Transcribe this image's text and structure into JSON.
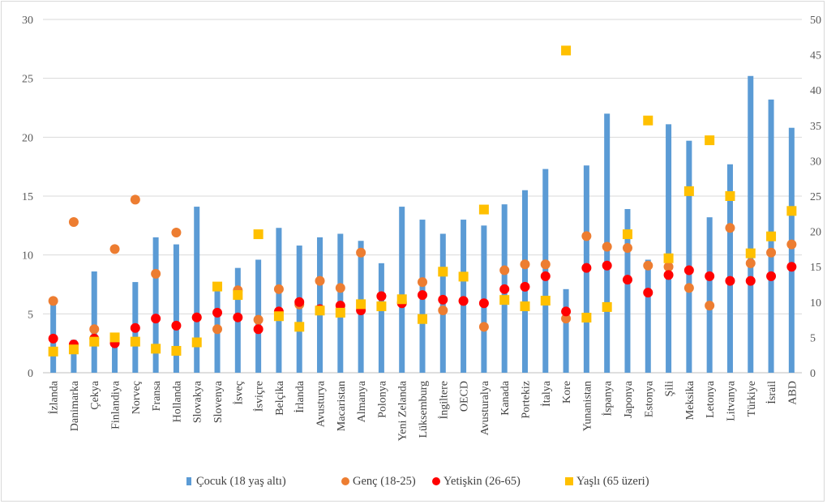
{
  "chart_data": {
    "type": "bar",
    "categories": [
      "İzlanda",
      "Danimarka",
      "Çekya",
      "Finlandiya",
      "Norveç",
      "Fransa",
      "Hollanda",
      "Slovakya",
      "Slovenya",
      "İsveç",
      "İsviçre",
      "Belçika",
      "İrlanda",
      "Avusturya",
      "Macaristan",
      "Almanya",
      "Polonya",
      "Yeni Zelanda",
      "Lüksemburg",
      "İngiltere",
      "OECD",
      "Avusturalya",
      "Kanada",
      "Portekiz",
      "İtalya",
      "Kore",
      "Yunanistan",
      "İspanya",
      "Japonya",
      "Estonya",
      "Şili",
      "Meksika",
      "Letonya",
      "Litvanya",
      "Türkiye",
      "İsrail",
      "ABD"
    ],
    "ylim": [
      0,
      30
    ],
    "y2lim": [
      0,
      50
    ],
    "y_ticks": [
      "0",
      "5",
      "10",
      "15",
      "20",
      "25",
      "30"
    ],
    "y2_ticks": [
      "0",
      "5",
      "10",
      "15",
      "20",
      "25",
      "30",
      "35",
      "40",
      "45",
      "50"
    ],
    "grid": "horizontal",
    "legend_position": "bottom",
    "series": [
      {
        "name": "Çocuk (18 yaş altı)",
        "type": "bar",
        "axis": "left",
        "color": "#5b9bd5",
        "values": [
          6.0,
          2.8,
          8.6,
          2.7,
          7.7,
          11.5,
          10.9,
          14.1,
          7.1,
          8.9,
          9.6,
          12.3,
          10.8,
          11.5,
          11.8,
          11.2,
          9.3,
          14.1,
          13.0,
          11.8,
          13.0,
          12.5,
          14.3,
          15.5,
          17.3,
          7.1,
          17.6,
          22.0,
          13.9,
          9.6,
          21.1,
          19.7,
          13.2,
          17.7,
          25.2,
          23.2,
          20.8
        ]
      },
      {
        "name": "Genç (18-25)",
        "type": "scatter",
        "axis": "left",
        "color": "#ed7d31",
        "marker": "circle",
        "values": [
          6.1,
          12.8,
          3.7,
          10.5,
          14.7,
          8.4,
          11.9,
          4.7,
          3.7,
          7.0,
          4.5,
          7.1,
          5.8,
          7.8,
          7.2,
          10.2,
          6.5,
          6.0,
          7.7,
          5.3,
          6.1,
          3.9,
          8.7,
          9.2,
          9.2,
          4.6,
          11.6,
          10.7,
          10.6,
          9.1,
          9.0,
          7.2,
          5.7,
          12.3,
          9.3,
          10.2,
          10.9
        ]
      },
      {
        "name": "Yetişkin (26-65)",
        "type": "scatter",
        "axis": "left",
        "color": "#ff0000",
        "marker": "circle",
        "values": [
          2.9,
          2.4,
          2.9,
          2.5,
          3.8,
          4.6,
          4.0,
          4.7,
          5.1,
          4.7,
          3.7,
          5.2,
          6.0,
          5.4,
          5.7,
          5.3,
          6.5,
          5.9,
          6.6,
          6.2,
          6.1,
          5.9,
          7.1,
          7.3,
          8.2,
          5.2,
          8.9,
          9.1,
          7.9,
          6.8,
          8.3,
          8.7,
          8.2,
          7.8,
          7.8,
          8.2,
          9.0
        ]
      },
      {
        "name": "Yaşlı (65 üzeri)",
        "type": "scatter",
        "axis": "right",
        "color": "#ffc000",
        "marker": "square",
        "values": [
          3.0,
          3.3,
          4.4,
          5.0,
          4.4,
          3.4,
          3.1,
          4.3,
          12.2,
          11.0,
          19.6,
          8.0,
          6.5,
          8.8,
          8.5,
          9.7,
          9.4,
          10.4,
          7.6,
          14.3,
          13.6,
          23.1,
          10.3,
          9.4,
          10.2,
          45.6,
          7.8,
          9.3,
          19.6,
          35.7,
          16.2,
          25.7,
          32.9,
          25.0,
          16.9,
          19.3,
          22.9
        ]
      }
    ]
  }
}
